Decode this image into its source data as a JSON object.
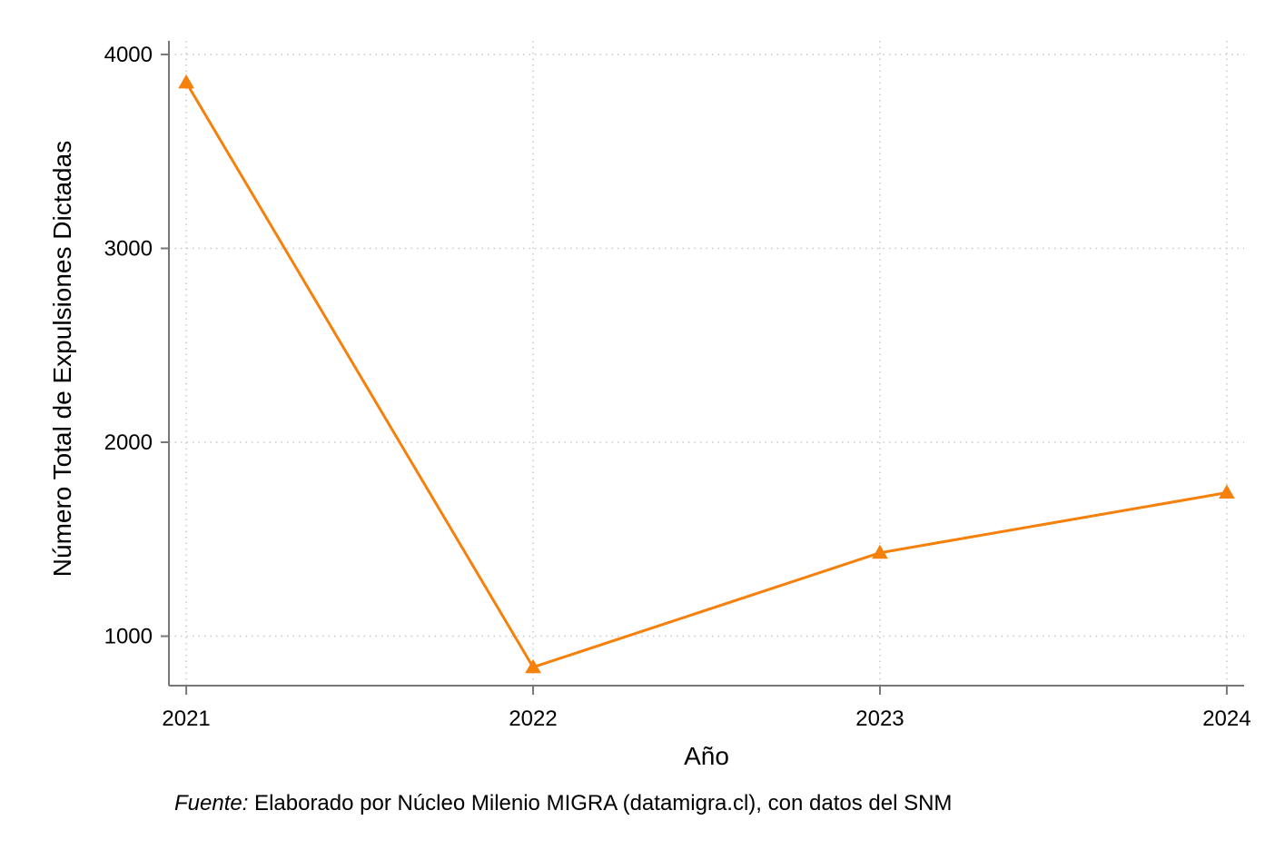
{
  "chart_data": {
    "type": "line",
    "title": "",
    "xlabel": "Año",
    "ylabel": "Número Total de Expulsiones Dictadas",
    "x": [
      2021,
      2022,
      2023,
      2024
    ],
    "x_tick_labels": [
      "2021",
      "2022",
      "2023",
      "2024"
    ],
    "y_ticks": [
      1000,
      2000,
      3000,
      4000
    ],
    "y_tick_labels": [
      "1000",
      "2000",
      "3000",
      "4000"
    ],
    "ylim": [
      745,
      4070
    ],
    "xlim": [
      2020.95,
      2024.05
    ],
    "series": [
      {
        "values": [
          3855,
          840,
          1430,
          1740
        ],
        "color": "#f5800b",
        "marker": "triangle-up"
      }
    ],
    "grid": true,
    "legend": "none",
    "footnote_prefix": "Fuente:",
    "footnote_text": " Elaborado por Núcleo Milenio MIGRA (datamigra.cl), con datos del SNM"
  }
}
